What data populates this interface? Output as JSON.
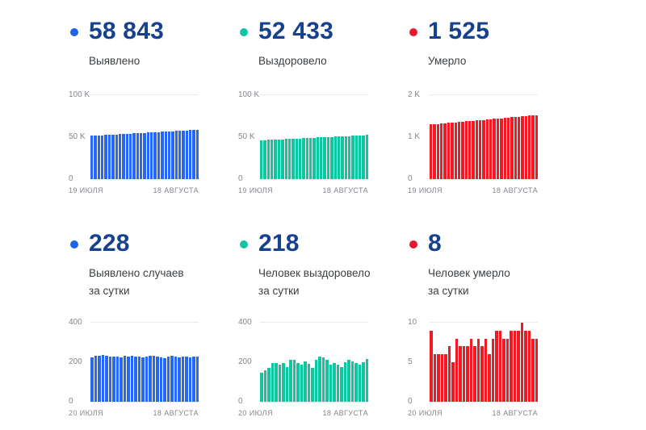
{
  "colors": {
    "value_text": "#16418e",
    "label_text": "#3c4043",
    "axis_text": "#81868d",
    "gridline": "#e8eaed",
    "blue": "#2767f2",
    "teal": "#10c6a1",
    "red": "#ee1b24"
  },
  "cards": [
    {
      "id": "confirmed-total",
      "value": "58 843",
      "label_line1": "Выявлено",
      "label_line2": "",
      "dot_color": "#1b64e9"
    },
    {
      "id": "recovered-total",
      "value": "52 433",
      "label_line1": "Выздоровело",
      "label_line2": "",
      "dot_color": "#12c5a2"
    },
    {
      "id": "deaths-total",
      "value": "1 525",
      "label_line1": "Умерло",
      "label_line2": "",
      "dot_color": "#e7182b"
    },
    {
      "id": "confirmed-daily",
      "value": "228",
      "label_line1": "Выявлено случаев",
      "label_line2": "за сутки",
      "dot_color": "#1b64e9"
    },
    {
      "id": "recovered-daily",
      "value": "218",
      "label_line1": "Человек выздоровело",
      "label_line2": "за сутки",
      "dot_color": "#12c5a2"
    },
    {
      "id": "deaths-daily",
      "value": "8",
      "label_line1": "Человек умерло",
      "label_line2": "за сутки",
      "dot_color": "#e7182b"
    }
  ],
  "chart_data": [
    {
      "type": "bar",
      "title": "Выявлено",
      "color": "#2767f2",
      "ylim": [
        0,
        100000
      ],
      "y_ticks": [
        "100 K",
        "50 K",
        "0"
      ],
      "x_ticks": [
        "19 ИЮЛЯ",
        "18 АВГУСТА"
      ],
      "values": [
        51500,
        51745,
        51990,
        52234,
        52479,
        52724,
        52969,
        53213,
        53458,
        53703,
        53948,
        54193,
        54437,
        54682,
        54927,
        55172,
        55416,
        55661,
        55906,
        56151,
        56396,
        56640,
        56885,
        57130,
        57375,
        57619,
        57864,
        58109,
        58354,
        58598,
        58843
      ]
    },
    {
      "type": "bar",
      "title": "Выздоровело",
      "color": "#10c6a1",
      "ylim": [
        0,
        100000
      ],
      "y_ticks": [
        "100 K",
        "50 K",
        "0"
      ],
      "x_ticks": [
        "19 ИЮЛЯ",
        "18 АВГУСТА"
      ],
      "values": [
        46300,
        46504,
        46709,
        46913,
        47118,
        47322,
        47527,
        47731,
        47935,
        48140,
        48344,
        48549,
        48753,
        48958,
        49162,
        49366,
        49571,
        49775,
        49980,
        50184,
        50389,
        50593,
        50797,
        51002,
        51206,
        51411,
        51615,
        51820,
        52024,
        52228,
        52433
      ]
    },
    {
      "type": "bar",
      "title": "Умерло",
      "color": "#ee1b24",
      "ylim": [
        0,
        2000
      ],
      "y_ticks": [
        "2 K",
        "1 K",
        "0"
      ],
      "x_ticks": [
        "19 ИЮЛЯ",
        "18 АВГУСТА"
      ],
      "values": [
        1302,
        1309,
        1317,
        1324,
        1332,
        1339,
        1347,
        1354,
        1361,
        1369,
        1376,
        1384,
        1391,
        1399,
        1406,
        1413,
        1421,
        1428,
        1436,
        1443,
        1451,
        1458,
        1465,
        1473,
        1480,
        1488,
        1495,
        1503,
        1510,
        1517,
        1525
      ]
    },
    {
      "type": "bar",
      "title": "Выявлено случаев за сутки",
      "color": "#2767f2",
      "ylim": [
        0,
        400
      ],
      "y_ticks": [
        "400",
        "200",
        "0"
      ],
      "x_ticks": [
        "20 ИЮЛЯ",
        "18 АВГУСТА"
      ],
      "values": [
        226,
        231,
        234,
        235,
        232,
        230,
        229,
        227,
        224,
        231,
        230,
        232,
        229,
        227,
        223,
        229,
        232,
        231,
        227,
        223,
        221,
        229,
        232,
        227,
        223,
        227,
        230,
        223,
        227,
        228
      ]
    },
    {
      "type": "bar",
      "title": "Человек выздоровело за сутки",
      "color": "#10c6a1",
      "ylim": [
        0,
        400
      ],
      "y_ticks": [
        "400",
        "200",
        "0"
      ],
      "x_ticks": [
        "20 ИЮЛЯ",
        "18 АВГУСТА"
      ],
      "values": [
        146,
        161,
        172,
        196,
        194,
        186,
        197,
        176,
        211,
        213,
        196,
        186,
        206,
        191,
        171,
        214,
        229,
        223,
        211,
        187,
        197,
        187,
        176,
        201,
        213,
        206,
        197,
        187,
        201,
        218
      ]
    },
    {
      "type": "bar",
      "title": "Человек умерло за сутки",
      "color": "#ee1b24",
      "ylim": [
        0,
        10
      ],
      "y_ticks": [
        "10",
        "5",
        "0"
      ],
      "x_ticks": [
        "20 ИЮЛЯ",
        "18 АВГУСТА"
      ],
      "values": [
        9,
        6,
        6,
        6,
        6,
        7,
        5,
        8,
        7,
        7,
        7,
        8,
        7,
        8,
        7,
        8,
        6,
        8,
        9,
        9,
        8,
        8,
        9,
        9,
        9,
        10,
        9,
        9,
        8,
        8
      ]
    }
  ]
}
